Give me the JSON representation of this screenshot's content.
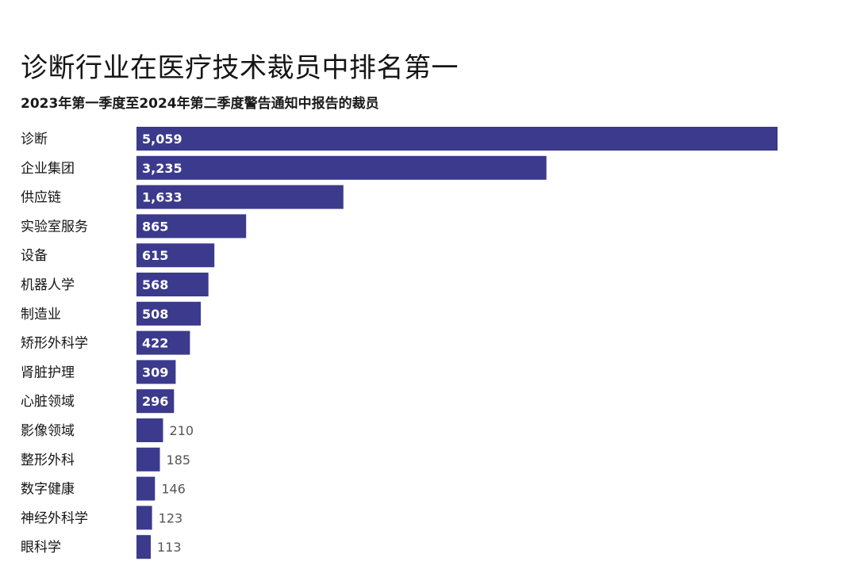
{
  "chart_data": {
    "type": "bar",
    "orientation": "horizontal",
    "title": "诊断行业在医疗技术裁员中排名第一",
    "subtitle": "2023年第一季度至2024年第二季度警告通知中报告的裁员",
    "categories": [
      "诊断",
      "企业集团",
      "供应链",
      "实验室服务",
      "设备",
      "机器人学",
      "制造业",
      "矫形外科学",
      "肾脏护理",
      "心脏领域",
      "影像领域",
      "整形外科",
      "数字健康",
      "神经外科学",
      "眼科学"
    ],
    "values": [
      5059,
      3235,
      1633,
      865,
      615,
      568,
      508,
      422,
      309,
      296,
      210,
      185,
      146,
      123,
      113
    ],
    "value_labels": [
      "5,059",
      "3,235",
      "1,633",
      "865",
      "615",
      "568",
      "508",
      "422",
      "309",
      "296",
      "210",
      "185",
      "146",
      "123",
      "113"
    ],
    "bar_color": "#3b3a8c",
    "grid": false,
    "legend": "none"
  }
}
